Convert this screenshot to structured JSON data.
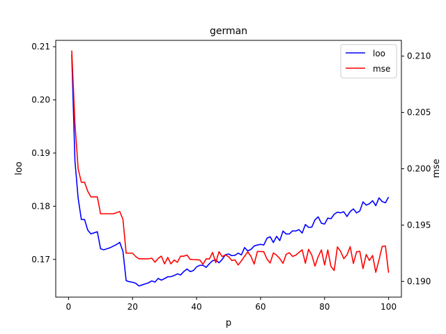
{
  "chart_data": {
    "type": "line",
    "title": "german",
    "xlabel": "p",
    "ylabel_left": "loo",
    "ylabel_right": "mse",
    "xlim": [
      -4,
      104
    ],
    "ylim_left": [
      0.1629,
      0.2112
    ],
    "ylim_right": [
      0.1886,
      0.2114
    ],
    "x_ticks": [
      0,
      20,
      40,
      60,
      80,
      100
    ],
    "y_ticks_left": [
      0.17,
      0.18,
      0.19,
      0.2,
      0.21
    ],
    "y_ticks_right": [
      0.19,
      0.195,
      0.2,
      0.205,
      0.21
    ],
    "legend_position": "top-right",
    "grid": false,
    "series": [
      {
        "name": "loo",
        "axis": "left",
        "color": "#0000ff",
        "anchors": [
          [
            1,
            0.2085
          ],
          [
            2,
            0.1885
          ],
          [
            3,
            0.1815
          ],
          [
            4,
            0.1775
          ],
          [
            5,
            0.1775
          ],
          [
            6,
            0.1755
          ],
          [
            7,
            0.1748
          ],
          [
            8,
            0.175
          ],
          [
            9,
            0.1752
          ],
          [
            10,
            0.172
          ],
          [
            11,
            0.1718
          ],
          [
            12,
            0.172
          ],
          [
            13,
            0.1722
          ],
          [
            14,
            0.1725
          ],
          [
            15,
            0.1728
          ],
          [
            16,
            0.1732
          ],
          [
            17,
            0.1715
          ],
          [
            18,
            0.166
          ],
          [
            19,
            0.1658
          ],
          [
            20,
            0.1657
          ],
          [
            21,
            0.1655
          ],
          [
            22,
            0.165
          ],
          [
            23,
            0.1652
          ],
          [
            24,
            0.1654
          ],
          [
            25,
            0.1656
          ],
          [
            30,
            0.1665
          ],
          [
            40,
            0.1683
          ],
          [
            50,
            0.1705
          ],
          [
            60,
            0.1728
          ],
          [
            70,
            0.1752
          ],
          [
            80,
            0.1775
          ],
          [
            90,
            0.1795
          ],
          [
            95,
            0.1802
          ],
          [
            100,
            0.1815
          ]
        ],
        "noise_after": 25,
        "noise_amp_start": 0.0003,
        "noise_amp_end": 0.0013
      },
      {
        "name": "mse",
        "axis": "right",
        "color": "#ff0000",
        "anchors": [
          [
            1,
            0.2105
          ],
          [
            2,
            0.204
          ],
          [
            3,
            0.2
          ],
          [
            4,
            0.1988
          ],
          [
            5,
            0.1988
          ],
          [
            6,
            0.198
          ],
          [
            7,
            0.1975
          ],
          [
            8,
            0.1975
          ],
          [
            9,
            0.1975
          ],
          [
            10,
            0.196
          ],
          [
            11,
            0.196
          ],
          [
            12,
            0.196
          ],
          [
            13,
            0.196
          ],
          [
            14,
            0.196
          ],
          [
            15,
            0.1961
          ],
          [
            16,
            0.1962
          ],
          [
            17,
            0.1955
          ],
          [
            18,
            0.1925
          ],
          [
            19,
            0.1925
          ],
          [
            20,
            0.1925
          ],
          [
            21,
            0.1922
          ],
          [
            22,
            0.192
          ],
          [
            23,
            0.192
          ],
          [
            24,
            0.192
          ],
          [
            25,
            0.192
          ],
          [
            100,
            0.192
          ]
        ],
        "noise_after": 25,
        "noise_amp_start": 0.0004,
        "noise_amp_end": 0.0013
      }
    ]
  }
}
